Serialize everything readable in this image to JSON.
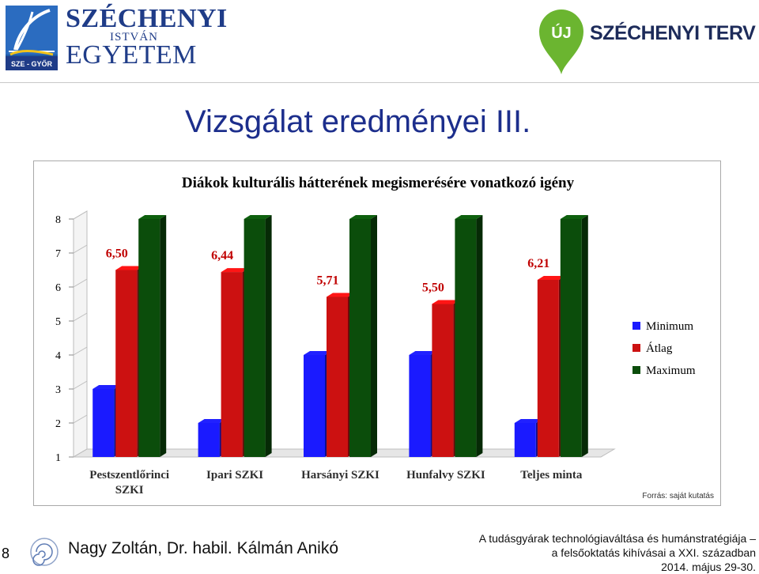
{
  "header": {
    "university": {
      "line1": "SZÉCHENYI",
      "line2": "ISTVÁN",
      "line3": "EGYETEM",
      "emblem_label": "SZE - GYŐR"
    },
    "program": {
      "badge": "ÚJ",
      "name": "SZÉCHENYI TERV"
    }
  },
  "slide": {
    "title": "Vizsgálat eredményei III."
  },
  "chart_data": {
    "type": "bar",
    "title": "Diákok kulturális hátterének megismerésére vonatkozó igény",
    "categories": [
      "Pestszentlőrinci SZKI",
      "Ipari SZKI",
      "Harsányi SZKI",
      "Hunfalvy SZKI",
      "Teljes minta"
    ],
    "category_lines": [
      [
        "Pestszentlőrinci",
        "SZKI"
      ],
      [
        "Ipari SZKI"
      ],
      [
        "Harsányi SZKI"
      ],
      [
        "Hunfalvy SZKI"
      ],
      [
        "Teljes minta"
      ]
    ],
    "series": [
      {
        "name": "Minimum",
        "color": "#1a1aff",
        "values": [
          3,
          2,
          4,
          4,
          2
        ]
      },
      {
        "name": "Átlag",
        "color": "#cc1111",
        "values": [
          6.5,
          6.44,
          5.71,
          5.5,
          6.21
        ]
      },
      {
        "name": "Maximum",
        "color": "#0b4d0b",
        "values": [
          8,
          8,
          8,
          8,
          8
        ]
      }
    ],
    "data_labels": [
      "6,50",
      "6,44",
      "5,71",
      "5,50",
      "6,21"
    ],
    "yticks": [
      "1",
      "2",
      "3",
      "4",
      "5",
      "6",
      "7",
      "8"
    ],
    "ylim": [
      1,
      8
    ],
    "legend_position": "right",
    "grid": false,
    "chart_style": "3d"
  },
  "source_note": "Forrás: saját kutatás",
  "footer": {
    "slide_number": "8",
    "authors": "Nagy Zoltán, Dr. habil. Kálmán Anikó",
    "conference_line1": "A tudásgyárak technológiaváltása és humánstratégiája –",
    "conference_line2": "a felsőoktatás kihívásai a XXI. században",
    "conference_date": "2014. május 29-30."
  }
}
